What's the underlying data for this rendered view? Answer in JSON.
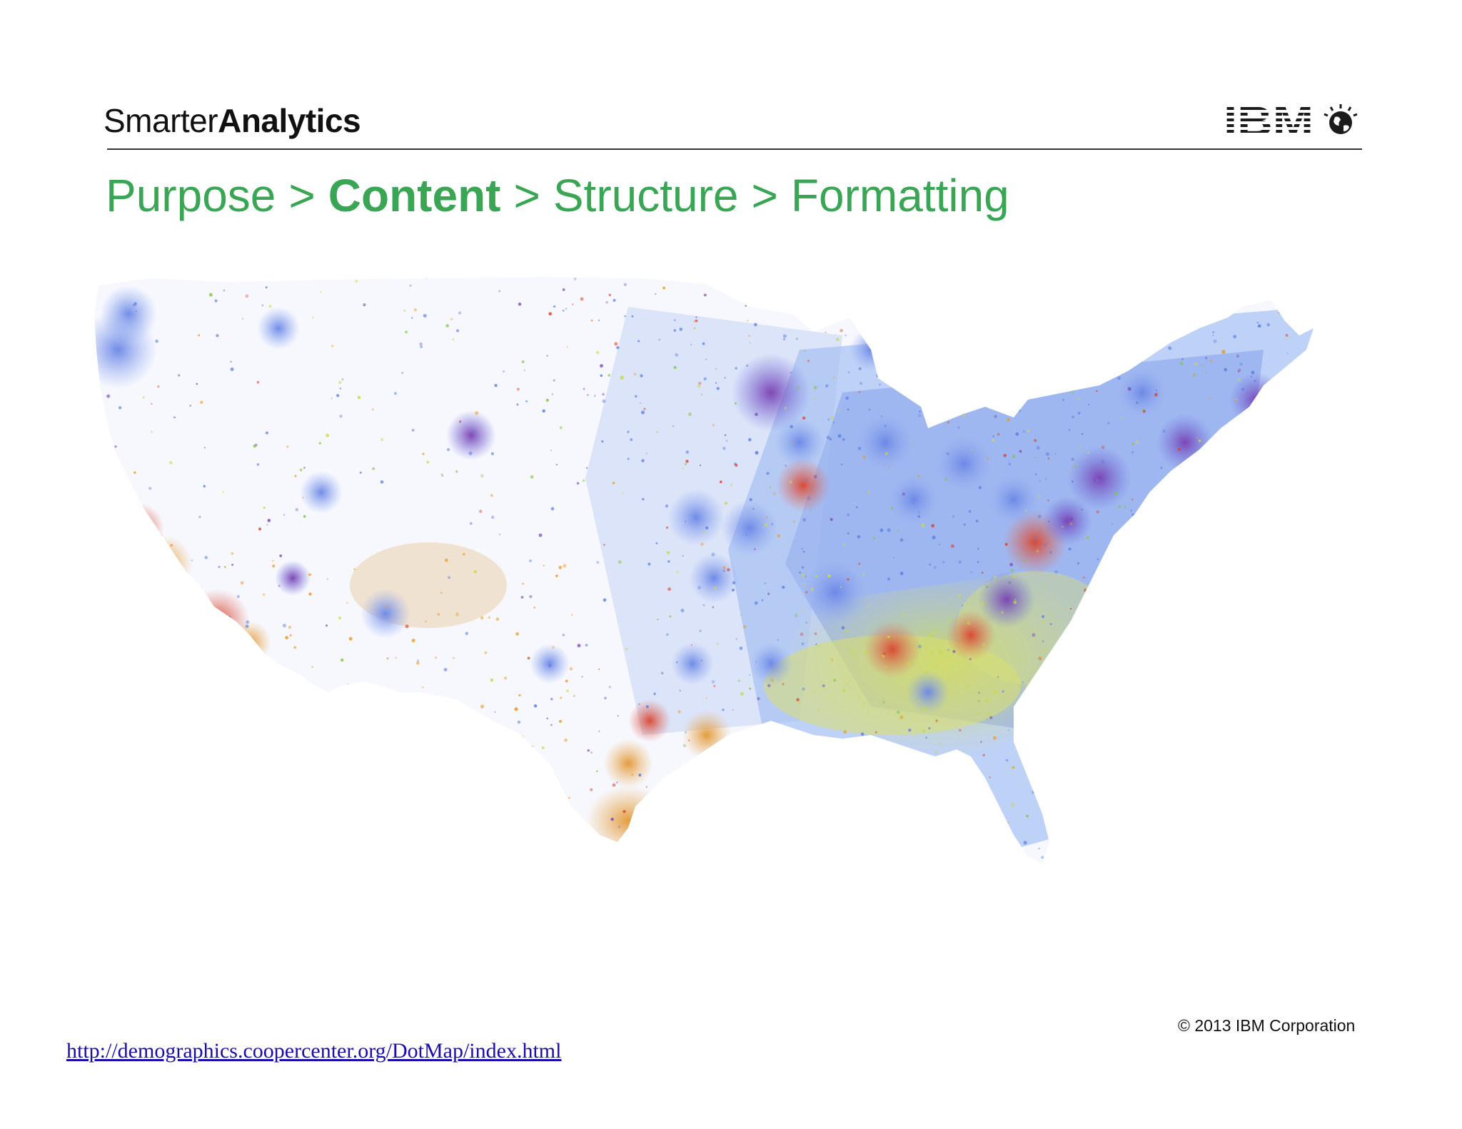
{
  "header": {
    "brand_light": "Smarter",
    "brand_bold": "Analytics",
    "company_logo": "IBM"
  },
  "breadcrumb": {
    "items": [
      "Purpose",
      "Content",
      "Structure",
      "Formatting"
    ],
    "separator": ">",
    "current_index": 1
  },
  "map": {
    "icon": "us-population-dot-map",
    "colors": {
      "blue": "#5b7fe0",
      "green": "#88c34a",
      "yellow_green": "#c9d84a",
      "red": "#d8452f",
      "orange": "#e89a2a",
      "purple": "#7a4fb8"
    }
  },
  "footer": {
    "copyright": "© 2013 IBM Corporation",
    "source_url": "http://demographics.coopercenter.org/DotMap/index.html"
  },
  "theme": {
    "accent": "#3aa655",
    "link": "#1a0dab"
  }
}
